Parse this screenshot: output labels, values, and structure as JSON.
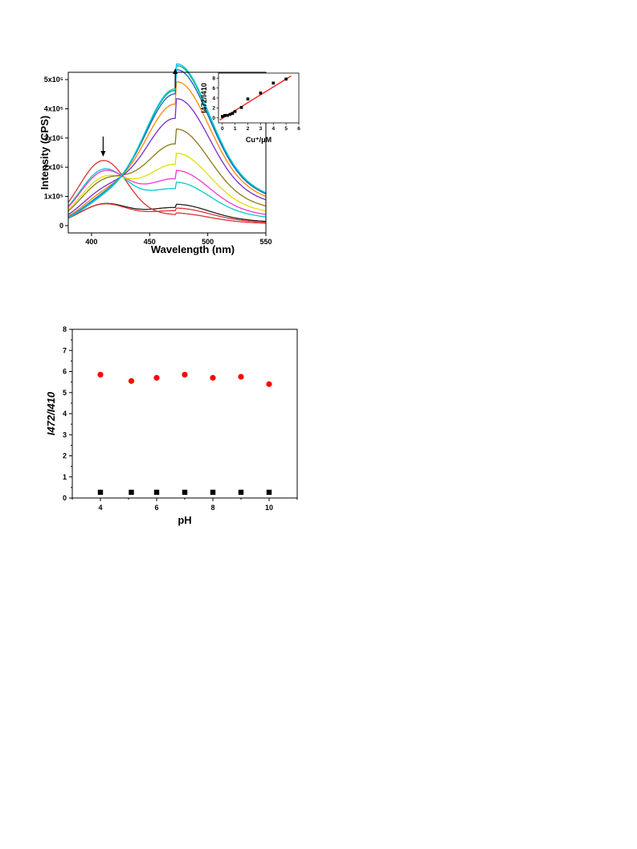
{
  "chart_data": [
    {
      "type": "line",
      "xlabel": "Wavelength (nm)",
      "ylabel": "Intensity (CPS)",
      "xlim": [
        380,
        550
      ],
      "ylim": [
        -25000,
        525000
      ],
      "xticks": [
        400,
        450,
        500,
        550
      ],
      "xtick_labels": [
        "400",
        "450",
        "500",
        "550"
      ],
      "yticks": [
        0,
        100000,
        200000,
        300000,
        400000,
        500000
      ],
      "ytick_labels": [
        "0",
        "1x10⁵",
        "2x10⁵",
        "3x10⁵",
        "4x10⁵",
        "5x10⁵"
      ],
      "isosbestic_point": 435,
      "arrows": [
        {
          "x": 410,
          "direction": "down"
        },
        {
          "x": 472,
          "direction": "up"
        }
      ],
      "series": [
        {
          "color": "#222222",
          "params": [
            70000,
            61000,
            410,
            21,
            472,
            28,
            150000,
            215000
          ]
        },
        {
          "color": "#dd3333",
          "params": [
            70000,
            50000,
            410,
            21,
            472,
            28,
            150000,
            215000
          ]
        },
        {
          "color": "#dd3333",
          "params": [
            220000,
            35000,
            410,
            21,
            472,
            28,
            150000,
            215000
          ]
        },
        {
          "color": "#00cccc",
          "params": [
            183000,
            124000,
            410,
            21,
            472,
            28,
            150000,
            215000
          ]
        },
        {
          "color": "#ff33cc",
          "params": [
            174000,
            158000,
            410,
            21,
            472,
            28,
            150000,
            215000
          ]
        },
        {
          "color": "#e0e000",
          "params": [
            150000,
            208000,
            410,
            21,
            472,
            28,
            150000,
            215000
          ]
        },
        {
          "color": "#8a7a1a",
          "params": [
            135000,
            278000,
            410,
            21,
            472,
            28,
            150000,
            215000
          ]
        },
        {
          "color": "#7a2ad0",
          "params": [
            100000,
            366000,
            410,
            21,
            472,
            28,
            150000,
            215000
          ]
        },
        {
          "color": "#ff8800",
          "params": [
            85000,
            415000,
            410,
            21,
            472,
            28,
            150000,
            215000
          ]
        },
        {
          "color": "#1060c0",
          "params": [
            75000,
            450000,
            410,
            21,
            472,
            28,
            150000,
            215000
          ]
        },
        {
          "color": "#00aa55",
          "params": [
            68000,
            462000,
            410,
            21,
            472,
            28,
            150000,
            215000
          ]
        },
        {
          "color": "#00c8ff",
          "params": [
            70000,
            467000,
            410,
            21,
            472,
            28,
            150000,
            215000
          ]
        }
      ],
      "inset": {
        "type": "scatter",
        "xlabel": "Cu⁺/μM",
        "ylabel": "I472/I410",
        "xlim": [
          -0.3,
          6
        ],
        "ylim": [
          -1,
          9
        ],
        "xticks": [
          0,
          1,
          2,
          3,
          4,
          5,
          6
        ],
        "yticks": [
          0,
          2,
          4,
          6,
          8
        ],
        "x": [
          0,
          0.2,
          0.4,
          0.6,
          0.8,
          1.0,
          1.5,
          2.0,
          3.0,
          4.0,
          5.0
        ],
        "y": [
          0.3,
          0.5,
          0.5,
          0.7,
          0.9,
          1.3,
          2.1,
          3.8,
          5.0,
          7.0,
          7.8
        ],
        "fit": {
          "slope": 1.58,
          "intercept": -0.1,
          "x_range": [
            -0.2,
            5.4
          ],
          "color": "#ff2222"
        }
      }
    },
    {
      "type": "scatter",
      "xlabel": "pH",
      "ylabel": "I472/I410",
      "xlim": [
        3,
        11
      ],
      "ylim": [
        0,
        8
      ],
      "xticks": [
        4,
        6,
        8,
        10
      ],
      "yticks": [
        0,
        1,
        2,
        3,
        4,
        5,
        6,
        7,
        8
      ],
      "series": [
        {
          "marker": "circle",
          "color": "#ff0000",
          "x": [
            4,
            5.1,
            6,
            7,
            8,
            9,
            10
          ],
          "y": [
            5.85,
            5.55,
            5.7,
            5.85,
            5.7,
            5.75,
            5.4
          ]
        },
        {
          "marker": "square",
          "color": "#000000",
          "x": [
            4,
            5.1,
            6,
            7,
            8,
            9,
            10
          ],
          "y": [
            0.27,
            0.27,
            0.27,
            0.27,
            0.27,
            0.27,
            0.27
          ]
        }
      ]
    }
  ]
}
